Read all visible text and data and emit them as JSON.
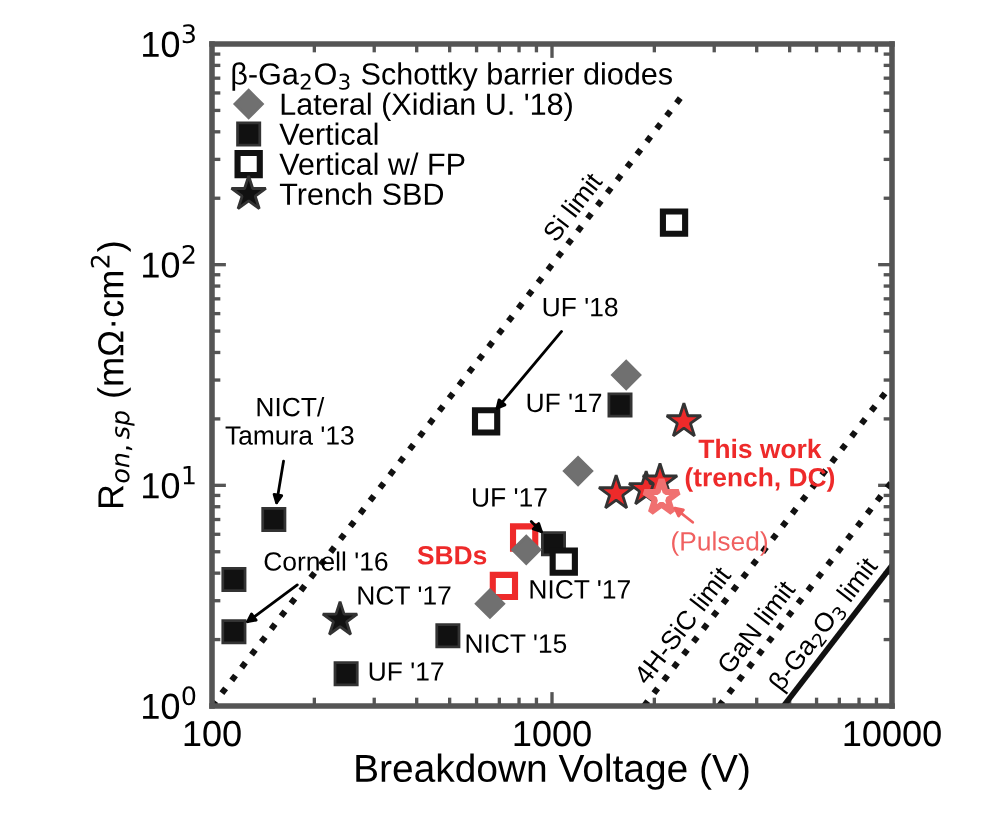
{
  "chart_data": {
    "type": "scatter",
    "xlabel": "Breakdown Voltage (V)",
    "ylabel": "R$_{on,sp}$ (mΩ·cm$^{2}$)",
    "legend_title": "β-Ga$_{2}$O$_{3}$ Schottky barrier diodes",
    "log": "xy",
    "xlim": [
      100,
      10000
    ],
    "ylim": [
      1,
      1000
    ],
    "xticks": [
      100,
      1000,
      10000
    ],
    "yticks": [
      {
        "value": 1,
        "label": "10$^{0}$"
      },
      {
        "value": 10,
        "label": "10$^{1}$"
      },
      {
        "value": 100,
        "label": "10$^{2}$"
      },
      {
        "value": 1000,
        "label": "10$^{3}$"
      }
    ],
    "grid": false,
    "legend": "top left",
    "series": [
      {
        "name": "Lateral (Xidian U. '18)",
        "marker": "diamond",
        "color": "#707070",
        "x": [
          657,
          840,
          1193,
          1653
        ],
        "values": [
          2.91,
          5.1,
          11.6,
          31.6
        ]
      },
      {
        "name": "Vertical",
        "marker": "square",
        "color": "#111111",
        "x": [
          116,
          116,
          152,
          248,
          494,
          1010,
          1585
        ],
        "values": [
          3.74,
          2.17,
          7.0,
          1.4,
          2.08,
          5.44,
          23.1
        ]
      },
      {
        "name": "Vertical w/ FP",
        "marker": "square",
        "color": "#111111",
        "x": [
          640,
          1083,
          2285
        ],
        "values": [
          19.5,
          4.51,
          155
        ]
      },
      {
        "name": "Trench SBD",
        "marker": "star",
        "color": "#111111",
        "x": [
          238
        ],
        "values": [
          2.46
        ]
      },
      {
        "marker": "star",
        "color": "#ee2a2a",
        "x": [
          1544,
          1892,
          2078,
          2443
        ],
        "values": [
          9.2,
          9.6,
          10.4,
          19.5
        ]
      },
      {
        "marker": "star",
        "color": "#f07070",
        "x": [
          2100
        ],
        "values": [
          8.8
        ]
      },
      {
        "marker": "square",
        "color": "#ee2a2a",
        "x": [
          722,
          828
        ],
        "values": [
          3.5,
          5.8
        ]
      },
      {
        "name": "Si limit",
        "type": "line",
        "line_style": "dotted",
        "color": "#111111",
        "x": [
          100,
          2400
        ],
        "values": [
          1,
          576
        ]
      },
      {
        "name": "4H-SiC limit",
        "type": "line",
        "line_style": "dotted",
        "color": "#111111",
        "x": [
          1865,
          9600
        ],
        "values": [
          1,
          26.5
        ]
      },
      {
        "name": "GaN limit",
        "type": "line",
        "line_style": "dotted",
        "color": "#111111",
        "x": [
          3100,
          10000
        ],
        "values": [
          1,
          10.4
        ]
      },
      {
        "name": "β-Ga$_{2}$O$_{3}$ limit",
        "type": "line",
        "line_style": "solid",
        "color": "#111111",
        "x": [
          4800,
          10000
        ],
        "values": [
          1,
          4.34
        ]
      }
    ],
    "annotations": [
      {
        "text": "UF '18",
        "x": 640,
        "y": 19.5
      },
      {
        "text": "NICT/\nTamura '13",
        "x": 152,
        "y": 7.0
      },
      {
        "text": "Cornell '16",
        "x": 116,
        "y": 2.17
      },
      {
        "text": "NCT '17",
        "x": 238,
        "y": 2.46
      },
      {
        "text": "UF '17",
        "x": 248,
        "y": 1.4
      },
      {
        "text": "NICT '15",
        "x": 494,
        "y": 2.08
      },
      {
        "text": "UF '17",
        "x": 1010,
        "y": 5.44
      },
      {
        "text": "NICT '17",
        "x": 1083,
        "y": 4.51
      },
      {
        "text": "UF '17",
        "x": 1585,
        "y": 23.1
      },
      {
        "text": "SBDs",
        "x": 828,
        "y": 5.8
      },
      {
        "text": "This work\n(trench, DC)",
        "x": 2443,
        "y": 19.5
      },
      {
        "text": "(Pulsed)",
        "x": 2100,
        "y": 8.8
      }
    ]
  }
}
